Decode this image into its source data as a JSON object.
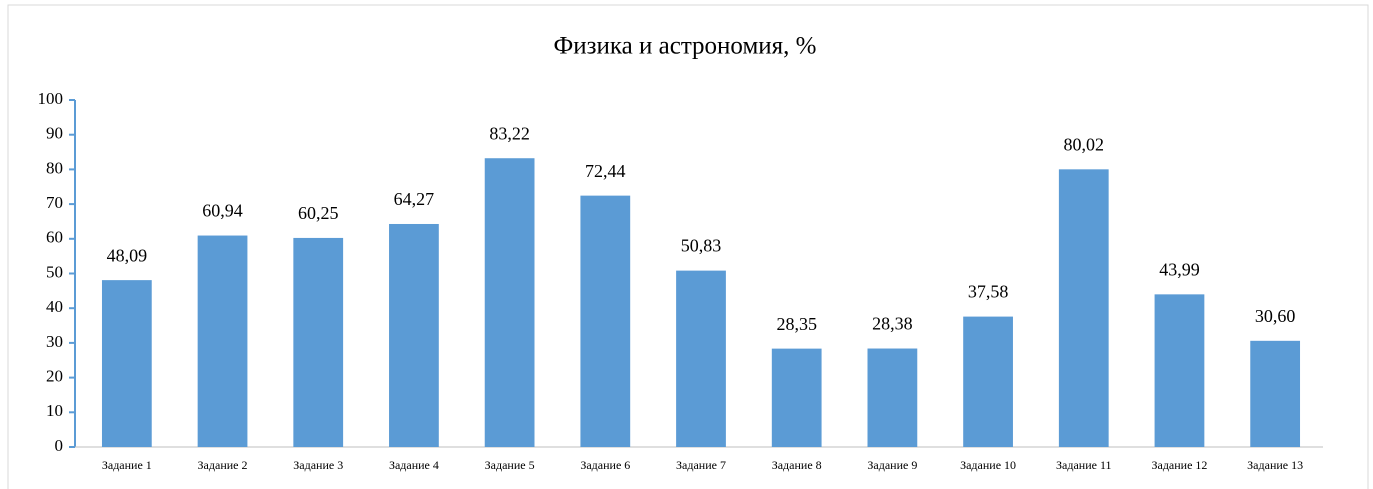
{
  "chart_data": {
    "type": "bar",
    "title": "Физика и астрономия, %",
    "categories": [
      "Задание 1",
      "Задание 2",
      "Задание 3",
      "Задание 4",
      "Задание 5",
      "Задание 6",
      "Задание 7",
      "Задание 8",
      "Задание 9",
      "Задание 10",
      "Задание 11",
      "Задание 12",
      "Задание 13"
    ],
    "values": [
      48.09,
      60.94,
      60.25,
      64.27,
      83.22,
      72.44,
      50.83,
      28.35,
      28.38,
      37.58,
      80.02,
      43.99,
      30.6
    ],
    "value_labels": [
      "48,09",
      "60,94",
      "60,25",
      "64,27",
      "83,22",
      "72,44",
      "50,83",
      "28,35",
      "28,38",
      "37,58",
      "80,02",
      "43,99",
      "30,60"
    ],
    "color": "#5b9bd5",
    "ylim": [
      0,
      100
    ],
    "yticks": [
      0,
      10,
      20,
      30,
      40,
      50,
      60,
      70,
      80,
      90,
      100
    ],
    "grid": false
  }
}
